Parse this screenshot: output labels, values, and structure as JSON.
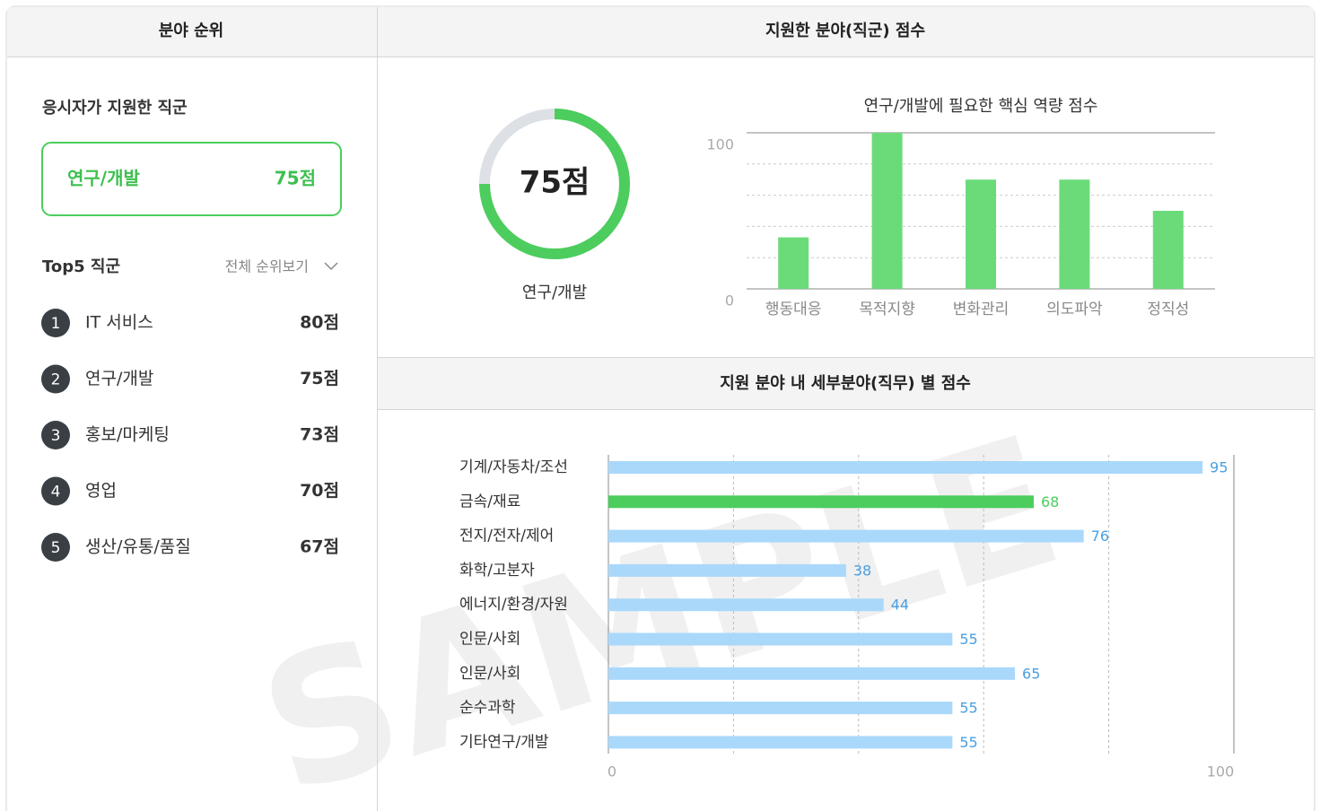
{
  "left": {
    "header": "분야 순위",
    "applied_title": "응시자가 지원한 직군",
    "applied": {
      "name": "연구/개발",
      "score": "75점"
    },
    "top5_title": "Top5 직군",
    "view_all": "전체 순위보기",
    "ranks": [
      {
        "rank": "1",
        "name": "IT 서비스",
        "score": "80점"
      },
      {
        "rank": "2",
        "name": "연구/개발",
        "score": "75점"
      },
      {
        "rank": "3",
        "name": "홍보/마케팅",
        "score": "73점"
      },
      {
        "rank": "4",
        "name": "영업",
        "score": "70점"
      },
      {
        "rank": "5",
        "name": "생산/유통/품질",
        "score": "67점"
      }
    ]
  },
  "right_header": "지원한 분야(직군) 점수",
  "bottom_header": "지원 분야 내 세부분야(직무) 별 점수",
  "watermark": "SAMPLE",
  "chart_data": [
    {
      "type": "donut",
      "categories": [
        "연구/개발"
      ],
      "values": [
        75
      ],
      "value_labels": [
        "75점"
      ],
      "ylim": [
        0,
        100
      ],
      "color": "#4ccd5e",
      "track_color": "#dde1e6"
    },
    {
      "type": "bar",
      "title": "연구/개발에 필요한 핵심 역량 점수",
      "categories": [
        "행동대응",
        "목적지향",
        "변화관리",
        "의도파악",
        "정직성"
      ],
      "values": [
        33,
        100,
        70,
        70,
        50
      ],
      "color": "#6bdb7a",
      "ylim": [
        0,
        100
      ],
      "yticks": [
        0,
        100
      ],
      "gridlines": [
        20,
        40,
        60,
        80,
        100
      ]
    },
    {
      "type": "hbar",
      "categories": [
        "기계/자동차/조선",
        "금속/재료",
        "전지/전자/제어",
        "화학/고분자",
        "에너지/환경/자원",
        "인문/사회",
        "인문/사회",
        "순수과학",
        "기타연구/개발"
      ],
      "values": [
        95,
        68,
        76,
        38,
        44,
        55,
        65,
        55,
        55
      ],
      "colors": [
        "#a9d8fb",
        "#4ccd5e",
        "#a9d8fb",
        "#a9d8fb",
        "#a9d8fb",
        "#a9d8fb",
        "#a9d8fb",
        "#a9d8fb",
        "#a9d8fb"
      ],
      "label_colors": [
        "#4a9fe0",
        "#4ccd5e",
        "#4a9fe0",
        "#4a9fe0",
        "#4a9fe0",
        "#4a9fe0",
        "#4a9fe0",
        "#4a9fe0",
        "#4a9fe0"
      ],
      "xlim": [
        0,
        100
      ],
      "xticks": [
        0,
        100
      ],
      "gridlines": [
        20,
        40,
        60,
        80,
        100
      ]
    }
  ]
}
